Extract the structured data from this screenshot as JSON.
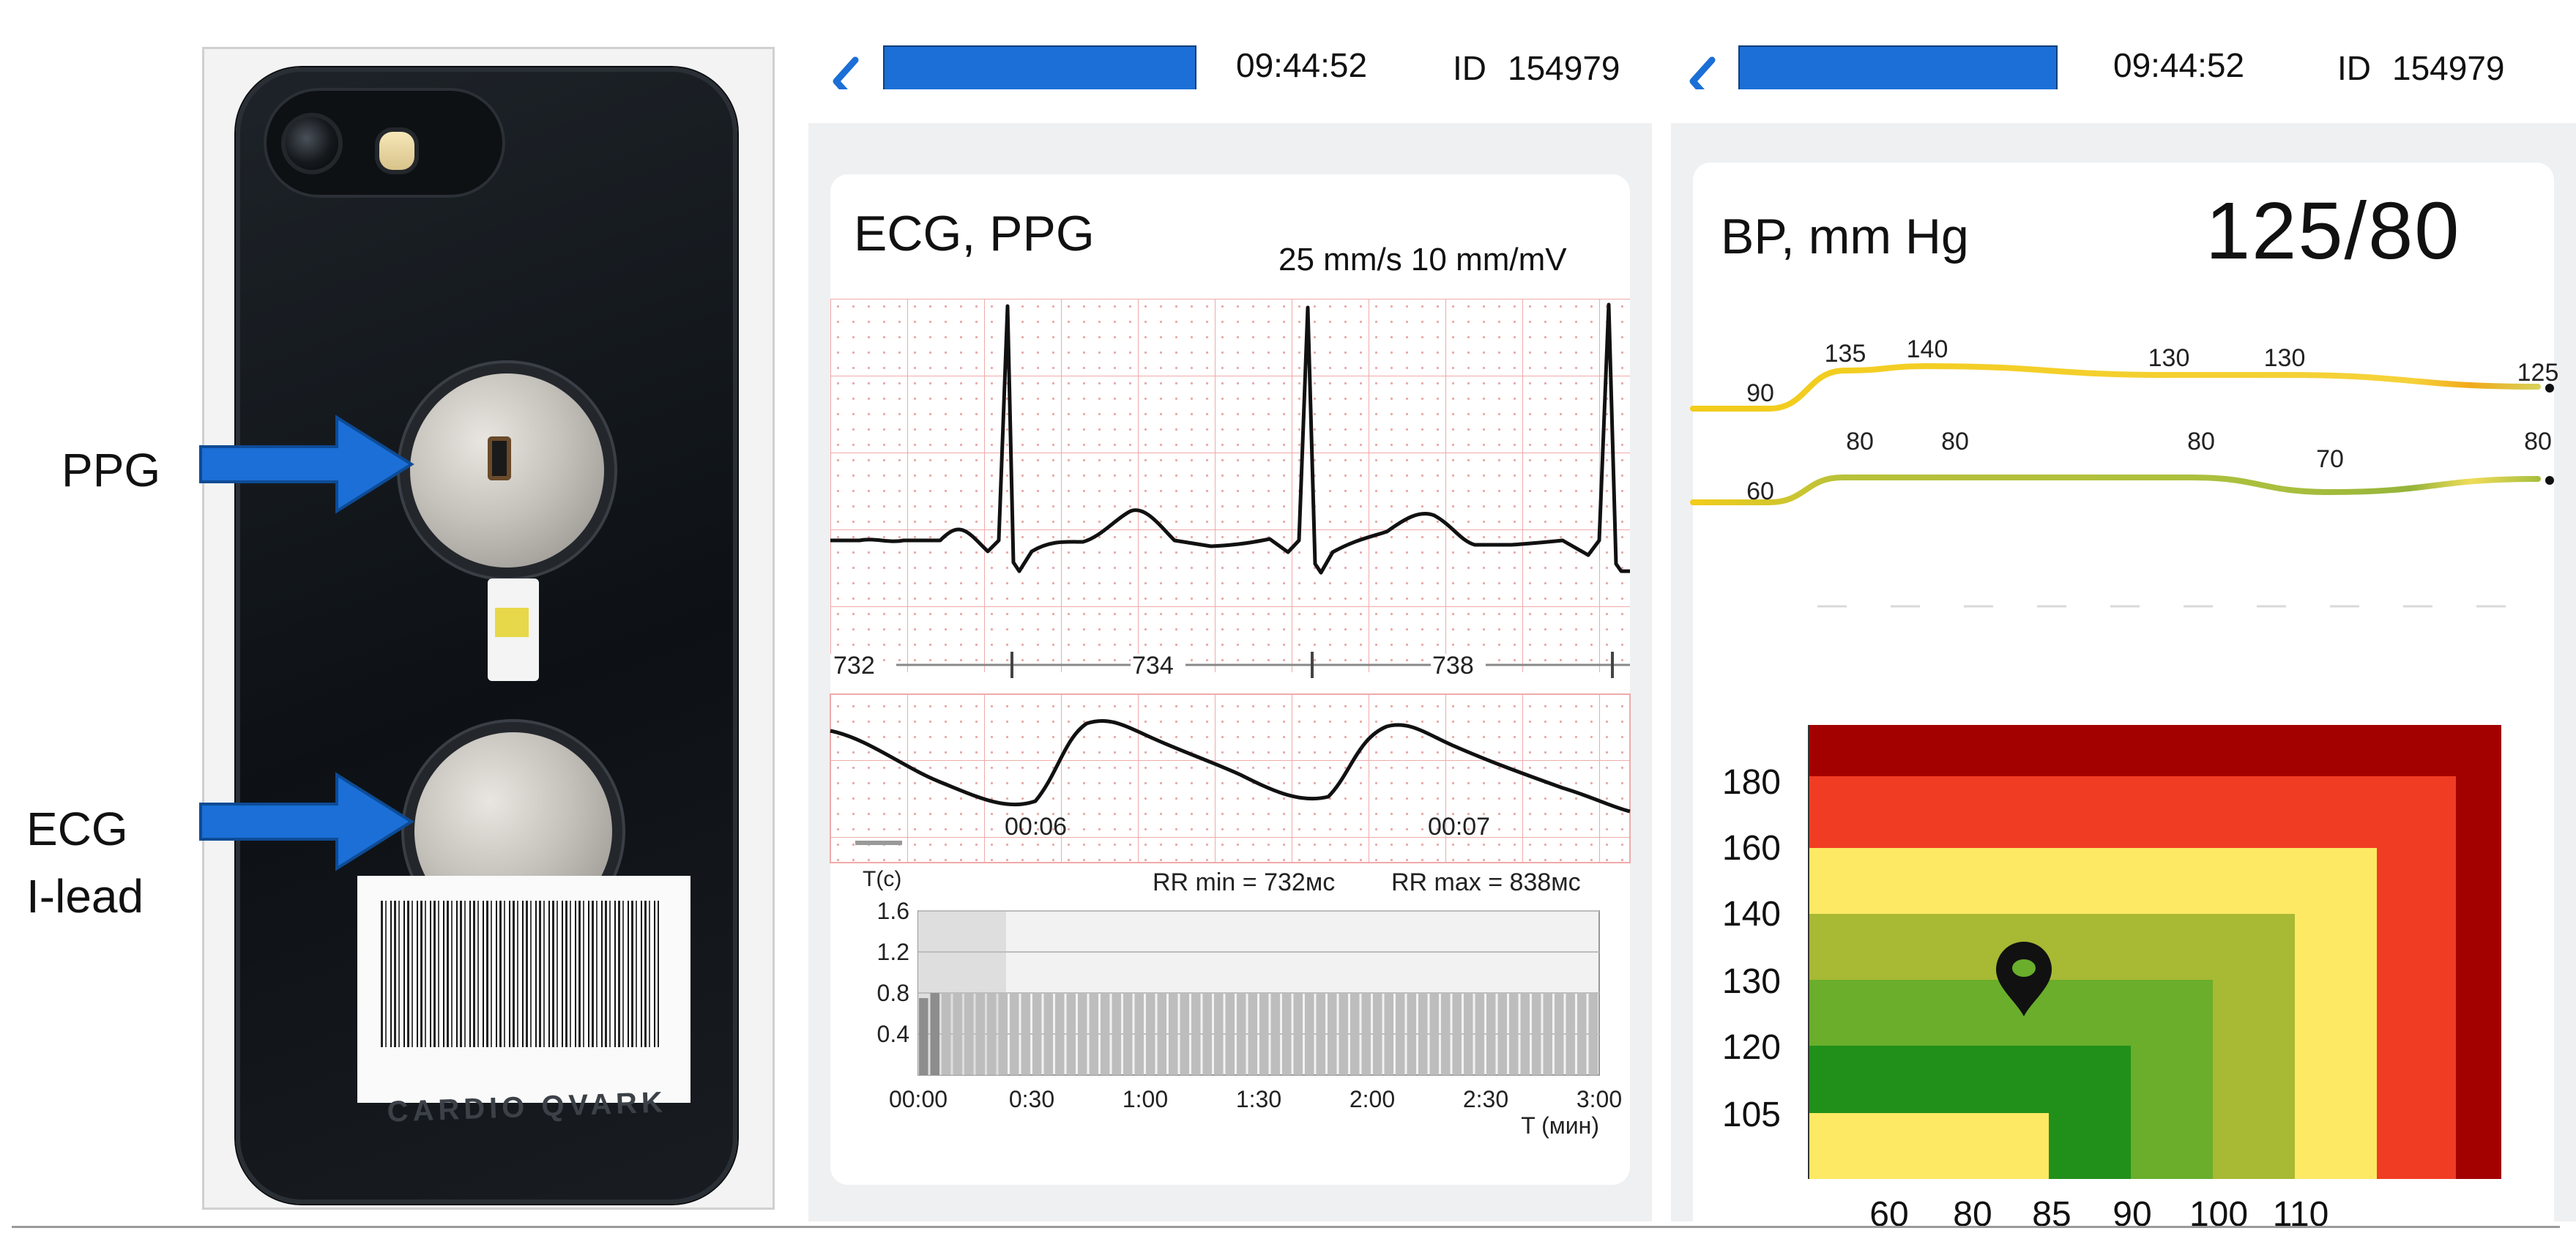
{
  "photo": {
    "brand_text": "CARDIO QVARK",
    "labels": {
      "ppg": "PPG",
      "ecg_line1": "ECG",
      "ecg_line2": "I-lead"
    },
    "arrow_color": "#1b6fd6"
  },
  "screen1": {
    "time": "09:44:52",
    "id_label": "ID",
    "id_value": "154979",
    "title": "ECG, PPG",
    "scale": "25 mm/s  10 mm/mV",
    "rr_markers": [
      "732",
      "734",
      "738"
    ],
    "time_ticks": [
      "00:06",
      "00:07"
    ],
    "hist": {
      "y_label": "T(c)",
      "rr_min": "RR min = 732мс",
      "rr_max": "RR max = 838мс",
      "y_ticks": [
        "1.6",
        "1.2",
        "0.8",
        "0.4"
      ],
      "x_ticks": [
        "00:00",
        "0:30",
        "1:00",
        "1:30",
        "2:00",
        "2:30",
        "3:00"
      ],
      "x_label": "T (мин)"
    }
  },
  "screen2": {
    "time": "09:44:52",
    "id_label": "ID",
    "id_value": "154979",
    "title": "BP, mm Hg",
    "bp_value": "125/80",
    "systolic_points": [
      "90",
      "135",
      "140",
      "130",
      "130",
      "125"
    ],
    "diastolic_points": [
      "60",
      "80",
      "80",
      "80",
      "70",
      "80"
    ],
    "zone_chart": {
      "y_ticks": [
        "180",
        "160",
        "140",
        "130",
        "120",
        "105"
      ],
      "x_ticks": [
        "60",
        "80",
        "85",
        "90",
        "100",
        "110"
      ],
      "zone_colors": [
        "#a30000",
        "#f03c23",
        "#fde964",
        "#a8b934",
        "#6aae2b",
        "#21901a",
        "#fde964"
      ]
    }
  },
  "chart_data": [
    {
      "type": "line",
      "title": "BP, mm Hg",
      "series": [
        {
          "values": [
            90,
            135,
            140,
            130,
            130,
            125
          ]
        },
        {
          "values": [
            60,
            80,
            80,
            80,
            70,
            80
          ]
        }
      ]
    },
    {
      "type": "bar",
      "title": "",
      "xlabel": "T (мин)",
      "ylabel": "T(c)",
      "ylim": [
        0,
        1.6
      ],
      "annotations": [
        "RR min = 732мс",
        "RR max = 838мс"
      ],
      "series": [
        {
          "values": [
            0.75,
            0.8,
            0.8,
            0.8,
            0.8,
            0.8,
            0.8,
            0.8,
            0.8,
            0.8,
            0.8,
            0.8,
            0.8,
            0.8,
            0.8,
            0.8,
            0.8,
            0.8,
            0.8,
            0.8,
            0.8,
            0.8,
            0.8,
            0.8,
            0.8,
            0.8,
            0.8,
            0.8,
            0.8,
            0.8,
            0.8,
            0.8,
            0.8,
            0.8,
            0.8,
            0.8,
            0.8,
            0.8,
            0.8,
            0.8,
            0.8,
            0.8,
            0.8,
            0.8,
            0.8,
            0.8,
            0.8,
            0.8,
            0.8,
            0.8,
            0.8,
            0.8,
            0.8,
            0.8,
            0.8,
            0.8,
            0.8,
            0.8,
            0.8,
            0.8
          ]
        }
      ]
    }
  ]
}
